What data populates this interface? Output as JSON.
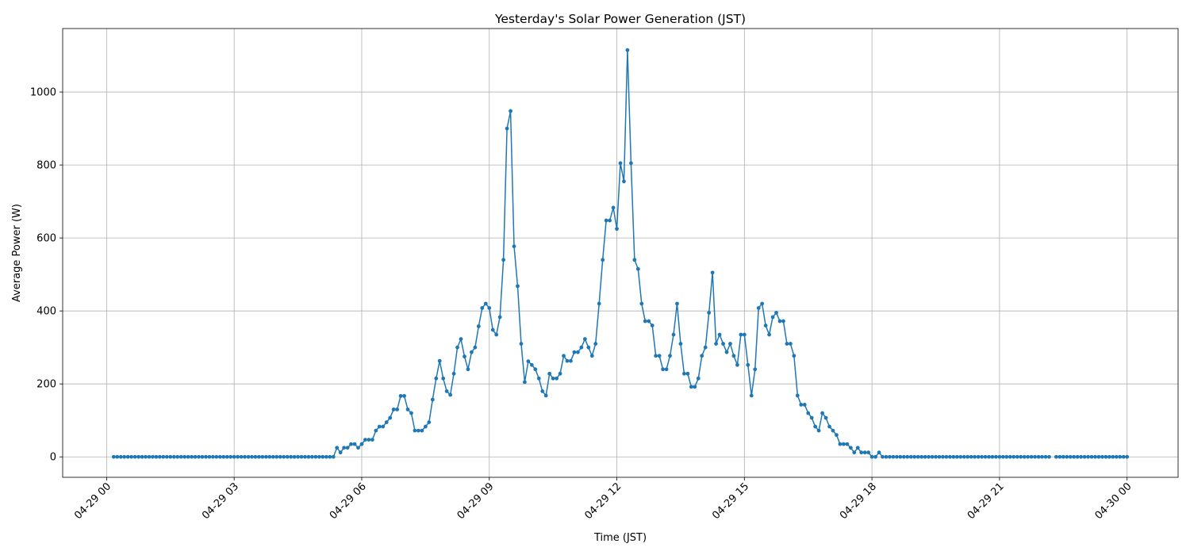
{
  "chart_data": {
    "type": "line",
    "title": "Yesterday's Solar Power Generation (JST)",
    "x_label": "Time (JST)",
    "y_label": "Average Power (W)",
    "color": "#1f77b4",
    "grid": true,
    "markers": true,
    "x": [
      "04-29 00:10",
      "04-29 00:15",
      "04-29 00:20",
      "04-29 00:25",
      "04-29 00:30",
      "04-29 00:35",
      "04-29 00:40",
      "04-29 00:45",
      "04-29 00:50",
      "04-29 00:55",
      "04-29 01:00",
      "04-29 01:05",
      "04-29 01:10",
      "04-29 01:15",
      "04-29 01:20",
      "04-29 01:25",
      "04-29 01:30",
      "04-29 01:35",
      "04-29 01:40",
      "04-29 01:45",
      "04-29 01:50",
      "04-29 01:55",
      "04-29 02:00",
      "04-29 02:05",
      "04-29 02:10",
      "04-29 02:15",
      "04-29 02:20",
      "04-29 02:25",
      "04-29 02:30",
      "04-29 02:35",
      "04-29 02:40",
      "04-29 02:45",
      "04-29 02:50",
      "04-29 02:55",
      "04-29 03:00",
      "04-29 03:05",
      "04-29 03:10",
      "04-29 03:15",
      "04-29 03:20",
      "04-29 03:25",
      "04-29 03:30",
      "04-29 03:35",
      "04-29 03:40",
      "04-29 03:45",
      "04-29 03:50",
      "04-29 03:55",
      "04-29 04:00",
      "04-29 04:05",
      "04-29 04:10",
      "04-29 04:15",
      "04-29 04:20",
      "04-29 04:25",
      "04-29 04:30",
      "04-29 04:35",
      "04-29 04:40",
      "04-29 04:45",
      "04-29 04:50",
      "04-29 04:55",
      "04-29 05:00",
      "04-29 05:05",
      "04-29 05:10",
      "04-29 05:15",
      "04-29 05:20",
      "04-29 05:25",
      "04-29 05:30",
      "04-29 05:35",
      "04-29 05:40",
      "04-29 05:45",
      "04-29 05:50",
      "04-29 05:55",
      "04-29 06:00",
      "04-29 06:05",
      "04-29 06:10",
      "04-29 06:15",
      "04-29 06:20",
      "04-29 06:25",
      "04-29 06:30",
      "04-29 06:35",
      "04-29 06:40",
      "04-29 06:45",
      "04-29 06:50",
      "04-29 06:55",
      "04-29 07:00",
      "04-29 07:05",
      "04-29 07:10",
      "04-29 07:15",
      "04-29 07:20",
      "04-29 07:25",
      "04-29 07:30",
      "04-29 07:35",
      "04-29 07:40",
      "04-29 07:45",
      "04-29 07:50",
      "04-29 07:55",
      "04-29 08:00",
      "04-29 08:05",
      "04-29 08:10",
      "04-29 08:15",
      "04-29 08:20",
      "04-29 08:25",
      "04-29 08:30",
      "04-29 08:35",
      "04-29 08:40",
      "04-29 08:45",
      "04-29 08:50",
      "04-29 08:55",
      "04-29 09:00",
      "04-29 09:05",
      "04-29 09:10",
      "04-29 09:15",
      "04-29 09:20",
      "04-29 09:25",
      "04-29 09:30",
      "04-29 09:35",
      "04-29 09:40",
      "04-29 09:45",
      "04-29 09:50",
      "04-29 09:55",
      "04-29 10:00",
      "04-29 10:05",
      "04-29 10:10",
      "04-29 10:15",
      "04-29 10:20",
      "04-29 10:25",
      "04-29 10:30",
      "04-29 10:35",
      "04-29 10:40",
      "04-29 10:45",
      "04-29 10:50",
      "04-29 10:55",
      "04-29 11:00",
      "04-29 11:05",
      "04-29 11:10",
      "04-29 11:15",
      "04-29 11:20",
      "04-29 11:25",
      "04-29 11:30",
      "04-29 11:35",
      "04-29 11:40",
      "04-29 11:45",
      "04-29 11:50",
      "04-29 11:55",
      "04-29 12:00",
      "04-29 12:05",
      "04-29 12:10",
      "04-29 12:15",
      "04-29 12:20",
      "04-29 12:25",
      "04-29 12:30",
      "04-29 12:35",
      "04-29 12:40",
      "04-29 12:45",
      "04-29 12:50",
      "04-29 12:55",
      "04-29 13:00",
      "04-29 13:05",
      "04-29 13:10",
      "04-29 13:15",
      "04-29 13:20",
      "04-29 13:25",
      "04-29 13:30",
      "04-29 13:35",
      "04-29 13:40",
      "04-29 13:45",
      "04-29 13:50",
      "04-29 13:55",
      "04-29 14:00",
      "04-29 14:05",
      "04-29 14:10",
      "04-29 14:15",
      "04-29 14:20",
      "04-29 14:25",
      "04-29 14:30",
      "04-29 14:35",
      "04-29 14:40",
      "04-29 14:45",
      "04-29 14:50",
      "04-29 14:55",
      "04-29 15:00",
      "04-29 15:05",
      "04-29 15:10",
      "04-29 15:15",
      "04-29 15:20",
      "04-29 15:25",
      "04-29 15:30",
      "04-29 15:35",
      "04-29 15:40",
      "04-29 15:45",
      "04-29 15:50",
      "04-29 15:55",
      "04-29 16:00",
      "04-29 16:05",
      "04-29 16:10",
      "04-29 16:15",
      "04-29 16:20",
      "04-29 16:25",
      "04-29 16:30",
      "04-29 16:35",
      "04-29 16:40",
      "04-29 16:45",
      "04-29 16:50",
      "04-29 16:55",
      "04-29 17:00",
      "04-29 17:05",
      "04-29 17:10",
      "04-29 17:15",
      "04-29 17:20",
      "04-29 17:25",
      "04-29 17:30",
      "04-29 17:35",
      "04-29 17:40",
      "04-29 17:45",
      "04-29 17:50",
      "04-29 17:55",
      "04-29 18:00",
      "04-29 18:05",
      "04-29 18:10",
      "04-29 18:15",
      "04-29 18:20",
      "04-29 18:25",
      "04-29 18:30",
      "04-29 18:35",
      "04-29 18:40",
      "04-29 18:45",
      "04-29 18:50",
      "04-29 18:55",
      "04-29 19:00",
      "04-29 19:05",
      "04-29 19:10",
      "04-29 19:15",
      "04-29 19:20",
      "04-29 19:25",
      "04-29 19:30",
      "04-29 19:35",
      "04-29 19:40",
      "04-29 19:45",
      "04-29 19:50",
      "04-29 19:55",
      "04-29 20:00",
      "04-29 20:05",
      "04-29 20:10",
      "04-29 20:15",
      "04-29 20:20",
      "04-29 20:25",
      "04-29 20:30",
      "04-29 20:35",
      "04-29 20:40",
      "04-29 20:45",
      "04-29 20:50",
      "04-29 20:55",
      "04-29 21:00",
      "04-29 21:05",
      "04-29 21:10",
      "04-29 21:15",
      "04-29 21:20",
      "04-29 21:25",
      "04-29 21:30",
      "04-29 21:35",
      "04-29 21:40",
      "04-29 21:45",
      "04-29 21:50",
      "04-29 21:55",
      "04-29 22:00",
      "04-29 22:05",
      "04-29 22:10",
      "04-29 22:15",
      "04-29 22:20",
      "04-29 22:25",
      "04-29 22:30",
      "04-29 22:35",
      "04-29 22:40",
      "04-29 22:45",
      "04-29 22:50",
      "04-29 22:55",
      "04-29 23:00",
      "04-29 23:05",
      "04-29 23:10",
      "04-29 23:15",
      "04-29 23:20",
      "04-29 23:25",
      "04-29 23:30",
      "04-29 23:35",
      "04-29 23:40",
      "04-29 23:45",
      "04-29 23:50",
      "04-29 23:55",
      "04-30 00:00"
    ],
    "values": [
      0,
      0,
      0,
      0,
      0,
      0,
      0,
      0,
      0,
      0,
      0,
      0,
      0,
      0,
      0,
      0,
      0,
      0,
      0,
      0,
      0,
      0,
      0,
      0,
      0,
      0,
      0,
      0,
      0,
      0,
      0,
      0,
      0,
      0,
      0,
      0,
      0,
      0,
      0,
      0,
      0,
      0,
      0,
      0,
      0,
      0,
      0,
      0,
      0,
      0,
      0,
      0,
      0,
      0,
      0,
      0,
      0,
      0,
      0,
      0,
      0,
      0,
      0,
      25,
      12,
      25,
      25,
      35,
      35,
      25,
      35,
      47,
      47,
      47,
      72,
      83,
      83,
      95,
      107,
      130,
      130,
      167,
      167,
      130,
      120,
      72,
      72,
      72,
      83,
      95,
      157,
      215,
      263,
      215,
      180,
      170,
      228,
      300,
      323,
      275,
      240,
      287,
      300,
      358,
      408,
      420,
      408,
      348,
      335,
      383,
      540,
      900,
      948,
      577,
      468,
      310,
      205,
      262,
      252,
      240,
      215,
      180,
      168,
      228,
      215,
      215,
      228,
      277,
      263,
      263,
      287,
      287,
      300,
      323,
      300,
      277,
      310,
      420,
      540,
      648,
      648,
      683,
      625,
      805,
      755,
      1115,
      805,
      540,
      515,
      420,
      372,
      372,
      360,
      277,
      277,
      240,
      240,
      277,
      335,
      420,
      310,
      228,
      228,
      192,
      192,
      215,
      277,
      300,
      395,
      505,
      310,
      335,
      310,
      287,
      310,
      277,
      252,
      335,
      335,
      252,
      168,
      240,
      408,
      420,
      360,
      335,
      383,
      395,
      372,
      372,
      310,
      310,
      277,
      168,
      143,
      143,
      120,
      107,
      83,
      72,
      120,
      107,
      83,
      72,
      60,
      35,
      35,
      35,
      25,
      12,
      25,
      12,
      12,
      12,
      0,
      0,
      12,
      0,
      0,
      0,
      0,
      0,
      0,
      0,
      0,
      0,
      0,
      0,
      0,
      0,
      0,
      0,
      0,
      0,
      0,
      0,
      0,
      0,
      0,
      0,
      0,
      0,
      0,
      0,
      0,
      0,
      0,
      0,
      0,
      0,
      0,
      0,
      0,
      0,
      0,
      0,
      0,
      0,
      0,
      0,
      0,
      0,
      0,
      0,
      0,
      null,
      0,
      0,
      0,
      0,
      0,
      0,
      0,
      0,
      0,
      0,
      0,
      0,
      0,
      0,
      0,
      0,
      0,
      0,
      0,
      0,
      0
    ],
    "xlim": [
      "04-28 22:58",
      "04-30 01:12"
    ],
    "xticks": [
      {
        "value": "04-29 00:00",
        "label": "04-29 00"
      },
      {
        "value": "04-29 03:00",
        "label": "04-29 03"
      },
      {
        "value": "04-29 06:00",
        "label": "04-29 06"
      },
      {
        "value": "04-29 09:00",
        "label": "04-29 09"
      },
      {
        "value": "04-29 12:00",
        "label": "04-29 12"
      },
      {
        "value": "04-29 15:00",
        "label": "04-29 15"
      },
      {
        "value": "04-29 18:00",
        "label": "04-29 18"
      },
      {
        "value": "04-29 21:00",
        "label": "04-29 21"
      },
      {
        "value": "04-30 00:00",
        "label": "04-30 00"
      }
    ],
    "ylim": [
      -56,
      1174
    ],
    "yticks": [
      0,
      200,
      400,
      600,
      800,
      1000
    ]
  }
}
